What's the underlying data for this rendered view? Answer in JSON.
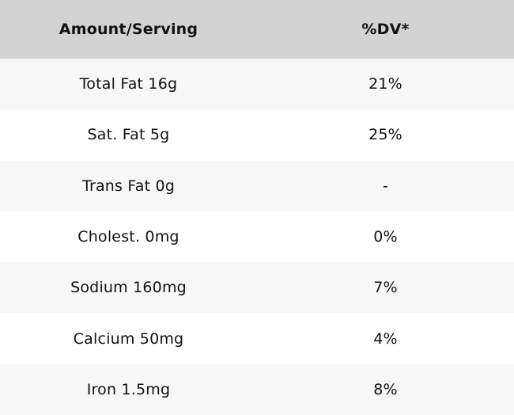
{
  "chart_data": {
    "type": "table",
    "columns": [
      "Amount/Serving",
      "%DV*"
    ],
    "rows": [
      [
        "Total Fat 16g",
        "21%"
      ],
      [
        "Sat. Fat 5g",
        "25%"
      ],
      [
        "Trans Fat 0g",
        "-"
      ],
      [
        "Cholest. 0mg",
        "0%"
      ],
      [
        "Sodium 160mg",
        "7%"
      ],
      [
        "Calcium 50mg",
        "4%"
      ],
      [
        "Iron 1.5mg",
        "8%"
      ]
    ]
  },
  "colors": {
    "header_bg": "#d3d3d3",
    "row_alt_bg": "#f7f7f7",
    "row_bg": "#ffffff",
    "text": "#111111"
  }
}
